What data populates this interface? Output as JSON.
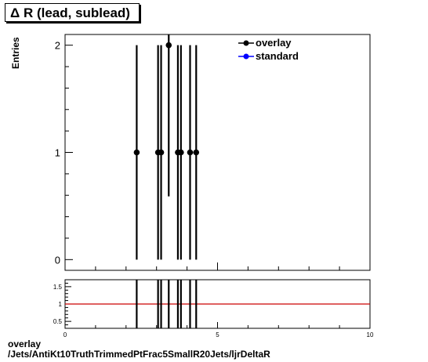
{
  "title": "Δ R (lead, sublead)",
  "ylabel": "Entries",
  "footer": {
    "line1": "overlay",
    "line2": "/Jets/AntiKt10TruthTrimmedPtFrac5SmallR20Jets/ljrDeltaR"
  },
  "legend": {
    "items": [
      {
        "label": "overlay",
        "color": "#000000"
      },
      {
        "label": "standard",
        "color": "#0000ff"
      }
    ]
  },
  "colors": {
    "ratio_line": "#cc0000"
  },
  "chart_data": [
    {
      "type": "scatter",
      "title": "Δ R (lead, sublead)",
      "ylabel": "Entries",
      "xlim": [
        0,
        10
      ],
      "ylim": [
        -0.1,
        2.1
      ],
      "yticks": [
        0,
        1,
        2
      ],
      "series": [
        {
          "name": "overlay",
          "points": [
            {
              "x": 2.35,
              "y": 1,
              "err": 1
            },
            {
              "x": 3.05,
              "y": 1,
              "err": 1
            },
            {
              "x": 3.15,
              "y": 1,
              "err": 1
            },
            {
              "x": 3.4,
              "y": 2,
              "err": 1.41
            },
            {
              "x": 3.7,
              "y": 1,
              "err": 1
            },
            {
              "x": 3.8,
              "y": 1,
              "err": 1
            },
            {
              "x": 4.1,
              "y": 1,
              "err": 1
            },
            {
              "x": 4.3,
              "y": 1,
              "err": 1
            }
          ]
        },
        {
          "name": "standard",
          "points": []
        }
      ]
    },
    {
      "type": "line",
      "xlim": [
        0,
        10
      ],
      "ylim": [
        0.3,
        1.7
      ],
      "yticks": [
        "0.5",
        "1",
        "1.5"
      ],
      "xticks": [
        "0",
        "5",
        "10"
      ],
      "reference_y": 1,
      "series": [
        {
          "name": "ratio",
          "points": [
            {
              "x": 2.35,
              "y": 1
            },
            {
              "x": 3.05,
              "y": 1
            },
            {
              "x": 3.15,
              "y": 1
            },
            {
              "x": 3.4,
              "y": 1
            },
            {
              "x": 3.7,
              "y": 1
            },
            {
              "x": 3.8,
              "y": 1
            },
            {
              "x": 4.1,
              "y": 1
            },
            {
              "x": 4.3,
              "y": 1
            }
          ]
        }
      ]
    }
  ]
}
